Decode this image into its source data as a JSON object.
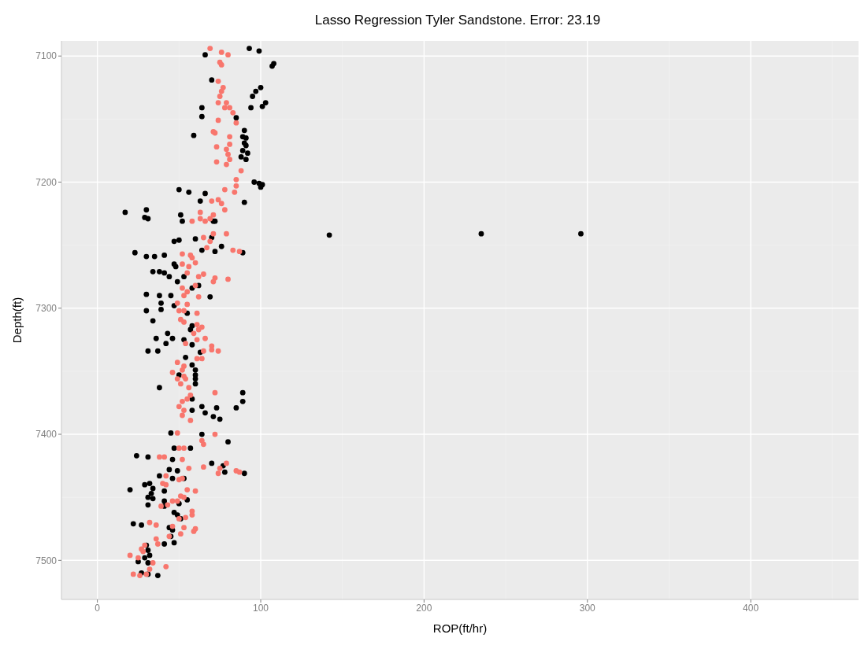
{
  "chart_data": {
    "type": "scatter",
    "title": "Lasso Regression Tyler Sandstone. Error: 23.19",
    "xlabel": "ROP(ft/hr)",
    "ylabel": "Depth(ft)",
    "xlim": [
      -22,
      466
    ],
    "xticks": [
      0,
      100,
      200,
      300,
      400
    ],
    "ylim": [
      7531,
      7088
    ],
    "yticks": [
      7100,
      7200,
      7300,
      7400,
      7500
    ],
    "grid": true,
    "legend": false,
    "marker": "circle",
    "series": [
      {
        "color": "#000000",
        "x": [
          93,
          99,
          66,
          108,
          107,
          70,
          100,
          97,
          95,
          103,
          101,
          94,
          64,
          64,
          85,
          90,
          59,
          89,
          91,
          90,
          91,
          89,
          92,
          88,
          91,
          99,
          101,
          96,
          100,
          50,
          66,
          56,
          63,
          17,
          30,
          31,
          29,
          51,
          52,
          72,
          71,
          90,
          142,
          235,
          296,
          47,
          50,
          60,
          70,
          64,
          72,
          76,
          89,
          23,
          30,
          35,
          41,
          47,
          48,
          34,
          38,
          41,
          44,
          49,
          53,
          58,
          62,
          30,
          38,
          45,
          39,
          47,
          69,
          30,
          39,
          55,
          34,
          58,
          57,
          43,
          46,
          36,
          42,
          53,
          58,
          31,
          37,
          63,
          54,
          58,
          60,
          60,
          60,
          60,
          50,
          38,
          89,
          89,
          58,
          64,
          73,
          85,
          58,
          66,
          71,
          75,
          45,
          64,
          80,
          57,
          47,
          24,
          31,
          46,
          70,
          77,
          78,
          90,
          44,
          49,
          38,
          46,
          53,
          29,
          32,
          34,
          20,
          41,
          33,
          31,
          34,
          41,
          55,
          31,
          50,
          41,
          47,
          49,
          51,
          22,
          27,
          44,
          46,
          45,
          47,
          41,
          30,
          31,
          32,
          29,
          25,
          31,
          27,
          31,
          37
        ],
        "values": [
          7094,
          7096,
          7099,
          7106,
          7108,
          7119,
          7125,
          7128,
          7132,
          7137,
          7140,
          7141,
          7141,
          7148,
          7149,
          7159,
          7163,
          7164,
          7165,
          7169,
          7171,
          7175,
          7177,
          7180,
          7182,
          7201,
          7202,
          7200,
          7204,
          7206,
          7209,
          7208,
          7215,
          7224,
          7222,
          7229,
          7228,
          7226,
          7231,
          7231,
          7231,
          7216,
          7242,
          7241,
          7241,
          7247,
          7246,
          7245,
          7244,
          7254,
          7255,
          7251,
          7256,
          7256,
          7259,
          7259,
          7258,
          7265,
          7267,
          7271,
          7271,
          7272,
          7275,
          7279,
          7275,
          7284,
          7282,
          7289,
          7290,
          7290,
          7296,
          7298,
          7291,
          7302,
          7301,
          7304,
          7310,
          7314,
          7317,
          7320,
          7324,
          7324,
          7328,
          7325,
          7329,
          7334,
          7334,
          7335,
          7339,
          7345,
          7349,
          7353,
          7356,
          7360,
          7353,
          7363,
          7367,
          7374,
          7372,
          7378,
          7379,
          7379,
          7381,
          7383,
          7386,
          7388,
          7399,
          7400,
          7406,
          7411,
          7411,
          7417,
          7418,
          7420,
          7423,
          7425,
          7430,
          7431,
          7428,
          7429,
          7433,
          7435,
          7435,
          7440,
          7439,
          7443,
          7444,
          7445,
          7447,
          7450,
          7451,
          7453,
          7452,
          7456,
          7455,
          7457,
          7462,
          7464,
          7467,
          7471,
          7472,
          7474,
          7476,
          7481,
          7486,
          7487,
          7488,
          7492,
          7496,
          7498,
          7501,
          7502,
          7510,
          7511,
          7512
        ]
      },
      {
        "color": "#f8766d",
        "x": [
          69,
          76,
          80,
          75,
          76,
          74,
          77,
          76,
          75,
          74,
          79,
          78,
          81,
          83,
          74,
          85,
          71,
          72,
          81,
          81,
          73,
          79,
          80,
          81,
          73,
          79,
          88,
          85,
          85,
          84,
          78,
          70,
          74,
          76,
          78,
          63,
          71,
          63,
          69,
          66,
          58,
          65,
          71,
          79,
          69,
          67,
          83,
          87,
          52,
          57,
          58,
          52,
          60,
          56,
          55,
          62,
          65,
          72,
          71,
          80,
          60,
          52,
          55,
          53,
          62,
          49,
          55,
          50,
          53,
          61,
          51,
          53,
          61,
          64,
          62,
          59,
          66,
          61,
          54,
          70,
          65,
          70,
          74,
          64,
          61,
          49,
          53,
          52,
          46,
          53,
          49,
          54,
          51,
          56,
          72,
          57,
          55,
          52,
          50,
          53,
          52,
          57,
          49,
          72,
          64,
          65,
          50,
          53,
          38,
          41,
          52,
          56,
          65,
          79,
          75,
          74,
          85,
          87,
          42,
          40,
          42,
          50,
          52,
          55,
          60,
          51,
          53,
          46,
          49,
          39,
          43,
          58,
          58,
          50,
          54,
          32,
          36,
          60,
          59,
          53,
          46,
          44,
          51,
          36,
          37,
          29,
          27,
          28,
          20,
          25,
          34,
          42,
          32,
          22,
          26,
          30
        ],
        "values": [
          7094,
          7097,
          7099,
          7105,
          7107,
          7120,
          7125,
          7128,
          7132,
          7137,
          7137,
          7141,
          7141,
          7145,
          7151,
          7153,
          7160,
          7161,
          7164,
          7170,
          7172,
          7174,
          7178,
          7182,
          7184,
          7186,
          7191,
          7198,
          7203,
          7208,
          7206,
          7215,
          7214,
          7217,
          7222,
          7224,
          7226,
          7229,
          7229,
          7231,
          7231,
          7244,
          7241,
          7241,
          7247,
          7252,
          7254,
          7255,
          7257,
          7258,
          7260,
          7265,
          7264,
          7267,
          7272,
          7275,
          7273,
          7276,
          7279,
          7277,
          7282,
          7284,
          7287,
          7290,
          7291,
          7296,
          7297,
          7302,
          7302,
          7304,
          7309,
          7311,
          7313,
          7315,
          7317,
          7320,
          7324,
          7325,
          7328,
          7330,
          7334,
          7333,
          7334,
          7340,
          7340,
          7343,
          7346,
          7349,
          7351,
          7354,
          7356,
          7356,
          7360,
          7363,
          7367,
          7369,
          7372,
          7374,
          7378,
          7381,
          7385,
          7389,
          7399,
          7400,
          7405,
          7408,
          7411,
          7411,
          7418,
          7418,
          7420,
          7427,
          7426,
          7423,
          7427,
          7431,
          7429,
          7430,
          7433,
          7439,
          7440,
          7436,
          7435,
          7444,
          7445,
          7449,
          7450,
          7453,
          7453,
          7457,
          7456,
          7461,
          7464,
          7467,
          7466,
          7470,
          7472,
          7475,
          7477,
          7474,
          7473,
          7481,
          7479,
          7483,
          7487,
          7488,
          7491,
          7493,
          7496,
          7498,
          7502,
          7505,
          7507,
          7511,
          7512,
          7511
        ]
      }
    ]
  }
}
